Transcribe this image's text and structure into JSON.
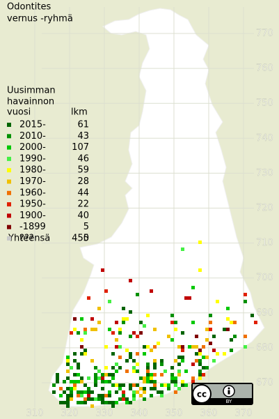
{
  "title": [
    "Odontites",
    "vernus -ryhmä"
  ],
  "legend": {
    "header": [
      "Uusimman",
      "havainnon",
      "vuosi"
    ],
    "count_header": "lkm",
    "rows": [
      {
        "label": "2015-",
        "count": 61,
        "color": "#006400"
      },
      {
        "label": "2010-",
        "count": 43,
        "color": "#009000"
      },
      {
        "label": "2000-",
        "count": 107,
        "color": "#00c800"
      },
      {
        "label": "1990-",
        "count": 46,
        "color": "#44f044"
      },
      {
        "label": "1980-",
        "count": 59,
        "color": "#ffff00"
      },
      {
        "label": "1970-",
        "count": 28,
        "color": "#f0c000"
      },
      {
        "label": "1960-",
        "count": 44,
        "color": "#f07000"
      },
      {
        "label": "1950-",
        "count": 22,
        "color": "#e02000"
      },
      {
        "label": "1900-",
        "count": 40,
        "color": "#c00000"
      },
      {
        "label": "-1899",
        "count": 5,
        "color": "#800000"
      },
      {
        "label": "???",
        "count": 0,
        "color": "#c8c8c8"
      }
    ],
    "total_label": "Yhteensä",
    "total": 455
  },
  "y_labels": [
    770,
    760,
    750,
    740,
    730,
    720,
    710,
    700,
    690,
    680,
    670
  ],
  "x_labels": [
    310,
    320,
    330,
    340,
    350,
    360,
    370
  ],
  "license": {
    "logo": "cc",
    "label": "BY"
  }
}
